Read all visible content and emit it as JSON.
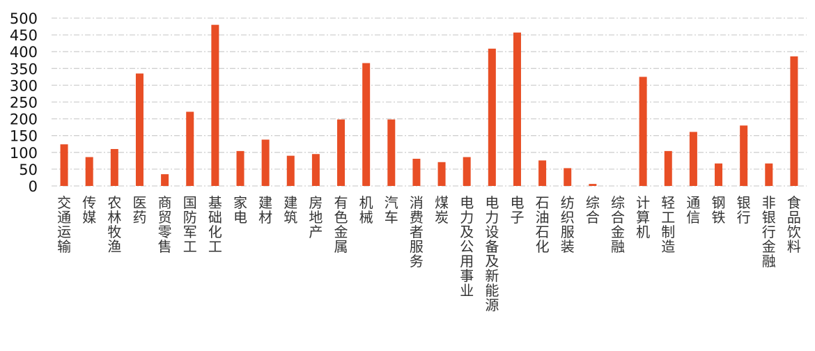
{
  "chart_data": {
    "type": "bar",
    "title": "",
    "xlabel": "",
    "ylabel": "",
    "ylim": [
      0,
      500
    ],
    "yticks": [
      0,
      50,
      100,
      150,
      200,
      250,
      300,
      350,
      400,
      450,
      500
    ],
    "grid": true,
    "legend": "none",
    "bar_color": "#e84e25",
    "categories": [
      "交通运输",
      "传媒",
      "农林牧渔",
      "医药",
      "商贸零售",
      "国防军工",
      "基础化工",
      "家电",
      "建材",
      "建筑",
      "房地产",
      "有色金属",
      "机械",
      "汽车",
      "消费者服务",
      "煤炭",
      "电力及公用事业",
      "电力设备及新能源",
      "电子",
      "石油石化",
      "纺织服装",
      "综合",
      "综合金融",
      "计算机",
      "轻工制造",
      "通信",
      "钢铁",
      "银行",
      "非银行金融",
      "食品饮料"
    ],
    "values": [
      124,
      86,
      110,
      335,
      35,
      221,
      480,
      104,
      138,
      90,
      95,
      198,
      366,
      198,
      81,
      71,
      86,
      409,
      457,
      76,
      53,
      6,
      0,
      325,
      104,
      161,
      67,
      180,
      67,
      386
    ]
  }
}
